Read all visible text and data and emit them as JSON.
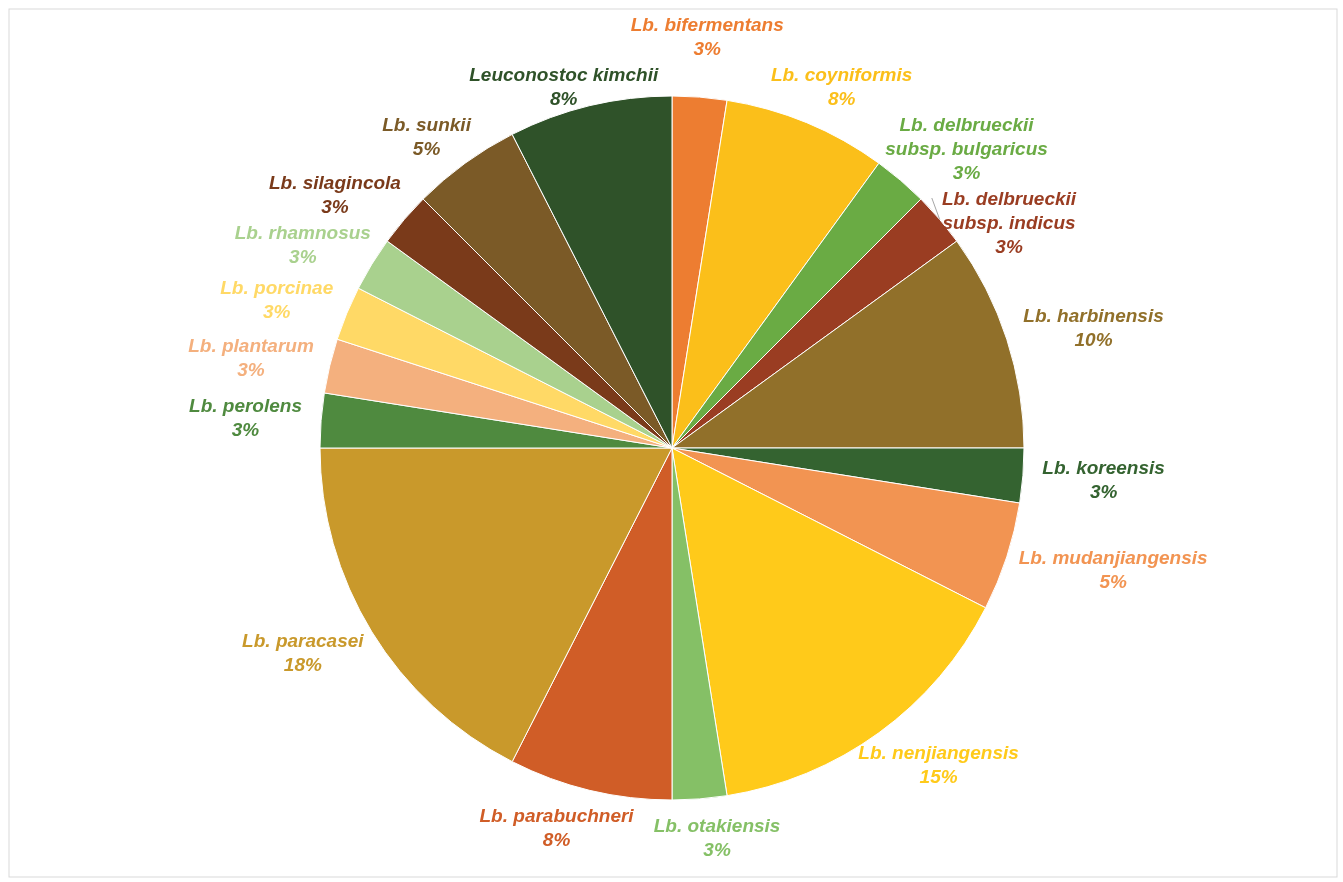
{
  "chart_data": {
    "type": "pie",
    "categories": [
      "Lb. bifermentans",
      "Lb. coyniformis",
      "Lb. delbrueckii\nsubsp. bulgaricus",
      "Lb. delbrueckii\nsubsp. indicus",
      "Lb. harbinensis",
      "Lb. koreensis",
      "Lb. mudanjiangensis",
      "Lb. nenjiangensis",
      "Lb. otakiensis",
      "Lb. parabuchneri",
      "Lb. paracasei",
      "Lb. perolens",
      "Lb. plantarum",
      "Lb. porcinae",
      "Lb. rhamnosus",
      "Lb. silagincola",
      "Lb. sunkii",
      "Leuconostoc kimchii"
    ],
    "values": [
      2.5,
      7.5,
      2.5,
      2.5,
      10,
      2.5,
      5,
      15,
      2.5,
      7.5,
      17.5,
      2.5,
      2.5,
      2.5,
      2.5,
      2.5,
      5,
      7.5
    ],
    "value_labels": [
      "3%",
      "8%",
      "3%",
      "3%",
      "10%",
      "3%",
      "5%",
      "15%",
      "3%",
      "8%",
      "18%",
      "3%",
      "3%",
      "3%",
      "3%",
      "3%",
      "5%",
      "8%"
    ],
    "colors": [
      "#ed7d31",
      "#fbbf1a",
      "#6aab44",
      "#9a3d22",
      "#91702a",
      "#346330",
      "#f29452",
      "#ffca1a",
      "#85c066",
      "#d05d27",
      "#c9992b",
      "#4f8a3f",
      "#f4b07e",
      "#ffd966",
      "#a9d18e",
      "#7a3a1a",
      "#7b5a27",
      "#2f5229"
    ]
  }
}
